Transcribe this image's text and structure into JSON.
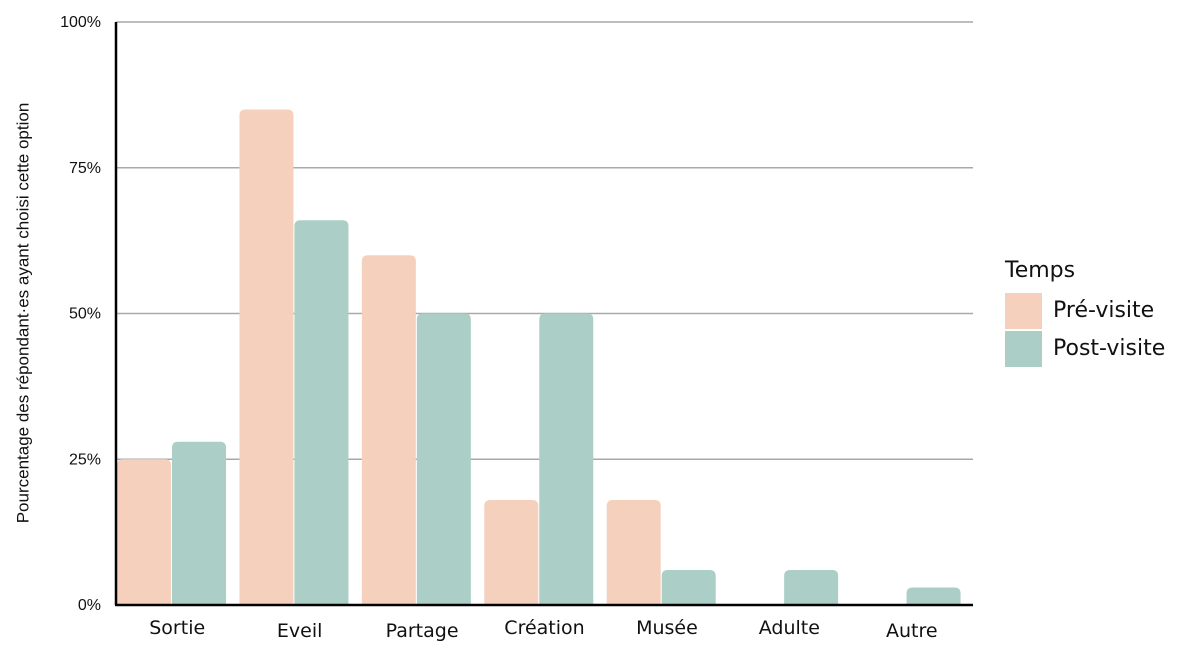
{
  "chart_data": {
    "type": "bar",
    "title": "",
    "xlabel": "",
    "ylabel": "Pourcentage des répondant·es ayant choisi cette option",
    "ylim": [
      0,
      100
    ],
    "yticks": [
      {
        "value": 0,
        "label": "0%"
      },
      {
        "value": 25,
        "label": "25%"
      },
      {
        "value": 50,
        "label": "50%"
      },
      {
        "value": 75,
        "label": "75%"
      },
      {
        "value": 100,
        "label": "100%"
      }
    ],
    "categories": [
      "Sortie",
      "Eveil",
      "Partage",
      "Création",
      "Musée",
      "Adulte",
      "Autre"
    ],
    "series": [
      {
        "name": "Pré-visite",
        "color": "#f5d1bd",
        "values": [
          25,
          85,
          60,
          18,
          18,
          0,
          0
        ]
      },
      {
        "name": "Post-visite",
        "color": "#abcfc7",
        "values": [
          28,
          66,
          50,
          50,
          6,
          6,
          3
        ]
      }
    ],
    "legend": {
      "title": "Temps",
      "position": "right"
    },
    "grid": true
  }
}
